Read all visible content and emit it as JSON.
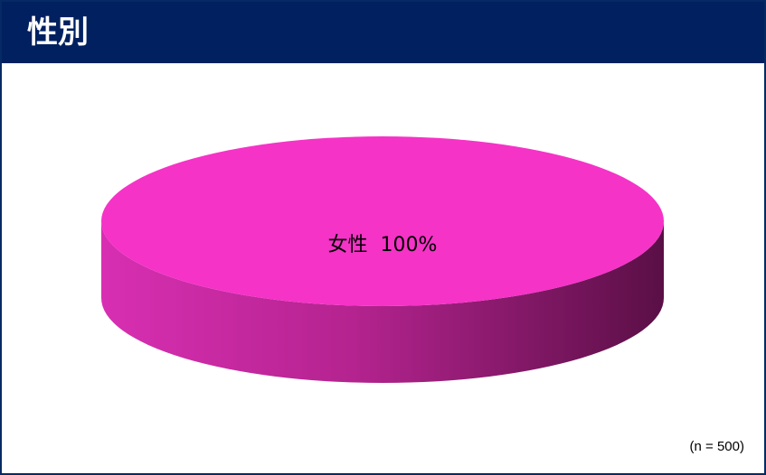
{
  "header": {
    "title": "性別"
  },
  "colors": {
    "header_bg": "#002060",
    "slice_top": "#f533c7",
    "slice_side_light": "#d82fb2",
    "slice_side_dark": "#5a0f46"
  },
  "chart_data": {
    "type": "pie",
    "title": "",
    "slices": [
      {
        "label": "女性",
        "value": 100,
        "value_label": "100%",
        "color": "#f533c7"
      }
    ]
  },
  "note": "(n = 500)"
}
